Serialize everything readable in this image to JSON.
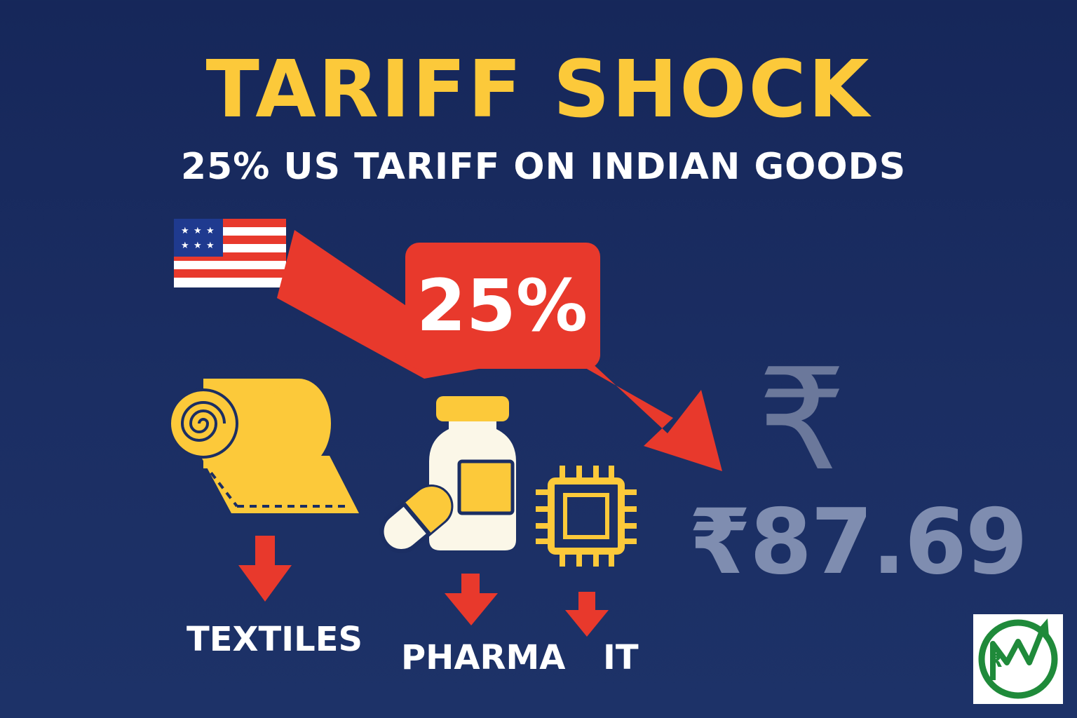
{
  "title": "TARIFF SHOCK",
  "subtitle": "25% US TARIFF ON INDIAN GOODS",
  "badge": "25%",
  "categories": [
    "TEXTILES",
    "PHARMA",
    "IT"
  ],
  "exchange_rate": "₹87.69",
  "currency_symbol": "₹",
  "logo_text": "₹",
  "colors": {
    "background": "#1a2c60",
    "title": "#fcc93a",
    "subtitle": "#ffffff",
    "arrow": "#e8392c",
    "icon_yellow": "#fcc93a",
    "icon_cream": "#fbf7e8",
    "rate": "#7f8db0",
    "logo_green": "#1f8a3a"
  },
  "icons": [
    "us-flag-icon",
    "fabric-roll-icon",
    "medicine-bottle-icon",
    "capsule-icon",
    "microchip-icon",
    "rupee-icon"
  ]
}
